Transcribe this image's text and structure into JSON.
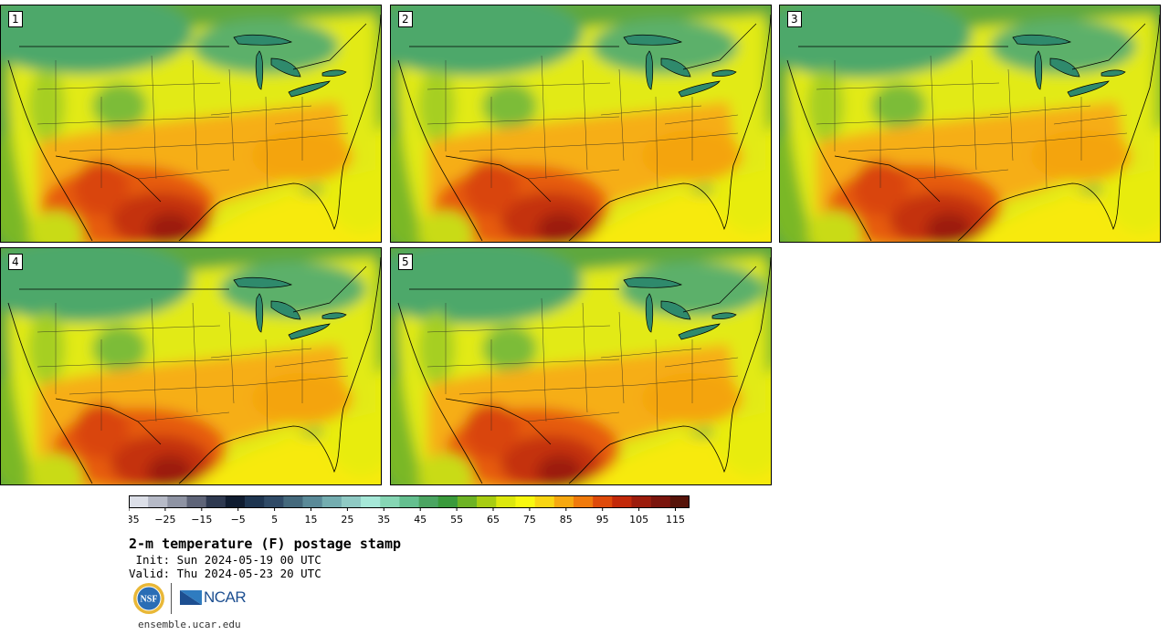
{
  "panels": [
    {
      "label": "1",
      "variant": 0
    },
    {
      "label": "2",
      "variant": 1
    },
    {
      "label": "3",
      "variant": 2
    },
    {
      "label": "4",
      "variant": 3
    },
    {
      "label": "5",
      "variant": 4
    }
  ],
  "colorbar": {
    "colors": [
      "#dcdfe8",
      "#b6bac7",
      "#8e93a3",
      "#5e6478",
      "#2e3950",
      "#0f1c30",
      "#1e3550",
      "#2f4a66",
      "#44697c",
      "#5a8a98",
      "#74adb0",
      "#8fcac4",
      "#a6e8d8",
      "#86d6b4",
      "#64bf8f",
      "#4ba562",
      "#3a9a3c",
      "#6db325",
      "#a8cd12",
      "#dde80d",
      "#f8f80f",
      "#f9d512",
      "#f6a810",
      "#f07a0c",
      "#de4a0a",
      "#c2290a",
      "#9c1c0c",
      "#7a150d",
      "#561309"
    ],
    "tick_labels": [
      "−35",
      "−25",
      "−15",
      "−5",
      "5",
      "15",
      "25",
      "35",
      "45",
      "55",
      "65",
      "75",
      "85",
      "95",
      "105",
      "115"
    ]
  },
  "title": "2-m temperature (F) postage stamp",
  "init": " Init: Sun 2024-05-19 00 UTC",
  "valid": "Valid: Thu 2024-05-23 20 UTC",
  "logos": {
    "nsf": "NSF",
    "ncar": "NCAR"
  },
  "website": "ensemble.ucar.edu"
}
